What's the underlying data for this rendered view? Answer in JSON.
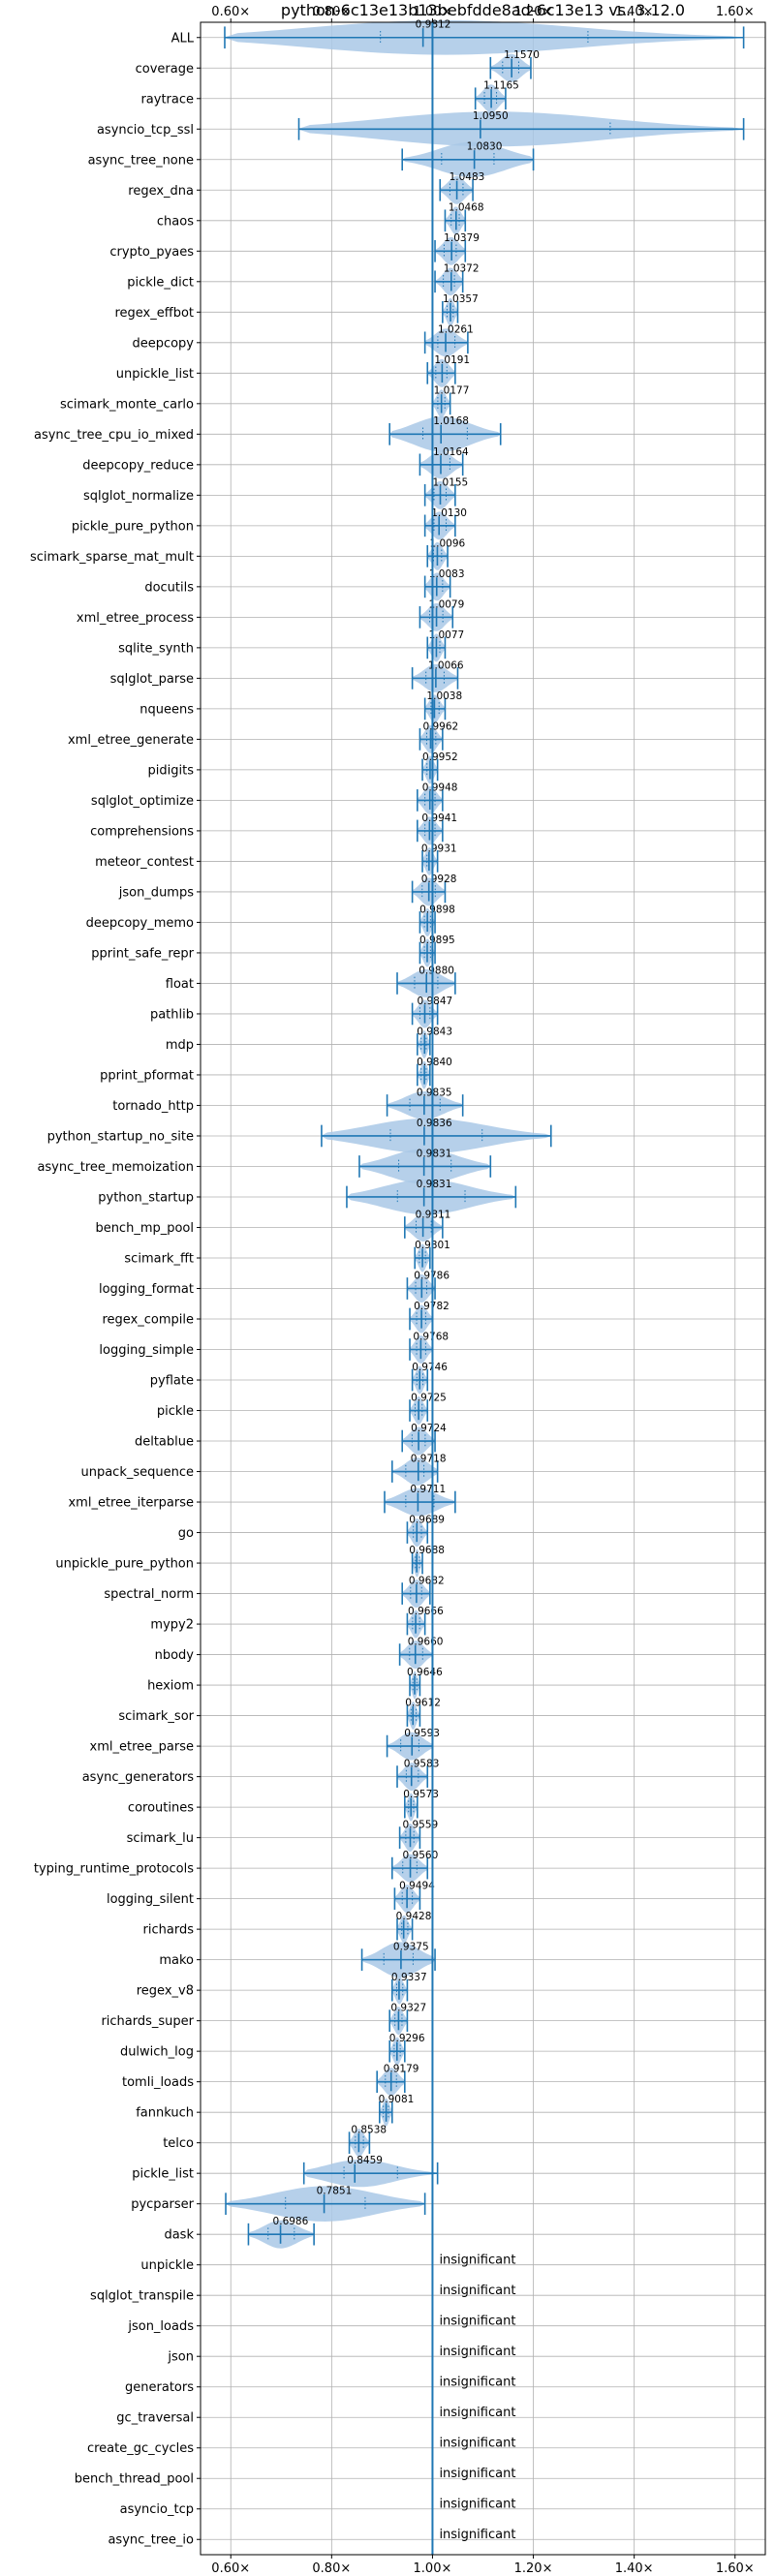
{
  "chart_data": {
    "type": "violin",
    "title": "python-6c13e13b13bebfdde8ad-6c13e13 vs. 3.12.0",
    "xlim": [
      0.54,
      1.66
    ],
    "xticks": [
      0.6,
      0.8,
      1.0,
      1.2,
      1.4,
      1.6
    ],
    "xtick_labels": [
      "0.60×",
      "0.80×",
      "1.00×",
      "1.20×",
      "1.40×",
      "1.60×"
    ],
    "reference_line": 1.0,
    "grid": true,
    "color": "#1f77b4",
    "fill_color": "#a9c8e6",
    "benchmarks": [
      {
        "name": "ALL",
        "label": "0.9812",
        "mean": 0.9812,
        "min": 0.588,
        "max": 1.617,
        "wide": true
      },
      {
        "name": "coverage",
        "label": "1.1570",
        "mean": 1.157,
        "min": 1.115,
        "max": 1.195
      },
      {
        "name": "raytrace",
        "label": "1.1165",
        "mean": 1.1165,
        "min": 1.085,
        "max": 1.145
      },
      {
        "name": "asyncio_tcp_ssl",
        "label": "1.0950",
        "mean": 1.095,
        "min": 0.735,
        "max": 1.617,
        "wide": true
      },
      {
        "name": "async_tree_none",
        "label": "1.0830",
        "mean": 1.083,
        "min": 0.94,
        "max": 1.2,
        "wide": true
      },
      {
        "name": "regex_dna",
        "label": "1.0483",
        "mean": 1.0483,
        "min": 1.015,
        "max": 1.08
      },
      {
        "name": "chaos",
        "label": "1.0468",
        "mean": 1.0468,
        "min": 1.025,
        "max": 1.065
      },
      {
        "name": "crypto_pyaes",
        "label": "1.0379",
        "mean": 1.0379,
        "min": 1.005,
        "max": 1.065
      },
      {
        "name": "pickle_dict",
        "label": "1.0372",
        "mean": 1.0372,
        "min": 1.005,
        "max": 1.06
      },
      {
        "name": "regex_effbot",
        "label": "1.0357",
        "mean": 1.0357,
        "min": 1.02,
        "max": 1.05
      },
      {
        "name": "deepcopy",
        "label": "1.0261",
        "mean": 1.0261,
        "min": 0.985,
        "max": 1.07
      },
      {
        "name": "unpickle_list",
        "label": "1.0191",
        "mean": 1.0191,
        "min": 0.99,
        "max": 1.045
      },
      {
        "name": "scimark_monte_carlo",
        "label": "1.0177",
        "mean": 1.0177,
        "min": 1.0,
        "max": 1.035
      },
      {
        "name": "async_tree_cpu_io_mixed",
        "label": "1.0168",
        "mean": 1.0168,
        "min": 0.915,
        "max": 1.135,
        "wide": true
      },
      {
        "name": "deepcopy_reduce",
        "label": "1.0164",
        "mean": 1.0164,
        "min": 0.975,
        "max": 1.06
      },
      {
        "name": "sqlglot_normalize",
        "label": "1.0155",
        "mean": 1.0155,
        "min": 0.985,
        "max": 1.045
      },
      {
        "name": "pickle_pure_python",
        "label": "1.0130",
        "mean": 1.013,
        "min": 0.985,
        "max": 1.045
      },
      {
        "name": "scimark_sparse_mat_mult",
        "label": "1.0096",
        "mean": 1.0096,
        "min": 0.99,
        "max": 1.03
      },
      {
        "name": "docutils",
        "label": "1.0083",
        "mean": 1.0083,
        "min": 0.985,
        "max": 1.035
      },
      {
        "name": "xml_etree_process",
        "label": "1.0079",
        "mean": 1.0079,
        "min": 0.975,
        "max": 1.04
      },
      {
        "name": "sqlite_synth",
        "label": "1.0077",
        "mean": 1.0077,
        "min": 0.99,
        "max": 1.025
      },
      {
        "name": "sqlglot_parse",
        "label": "1.0066",
        "mean": 1.0066,
        "min": 0.96,
        "max": 1.05
      },
      {
        "name": "nqueens",
        "label": "1.0038",
        "mean": 1.0038,
        "min": 0.985,
        "max": 1.025
      },
      {
        "name": "xml_etree_generate",
        "label": "0.9962",
        "mean": 0.9962,
        "min": 0.975,
        "max": 1.02
      },
      {
        "name": "pidigits",
        "label": "0.9952",
        "mean": 0.9952,
        "min": 0.98,
        "max": 1.01
      },
      {
        "name": "sqlglot_optimize",
        "label": "0.9948",
        "mean": 0.9948,
        "min": 0.97,
        "max": 1.02
      },
      {
        "name": "comprehensions",
        "label": "0.9941",
        "mean": 0.9941,
        "min": 0.97,
        "max": 1.02
      },
      {
        "name": "meteor_contest",
        "label": "0.9931",
        "mean": 0.9931,
        "min": 0.98,
        "max": 1.01
      },
      {
        "name": "json_dumps",
        "label": "0.9928",
        "mean": 0.9928,
        "min": 0.96,
        "max": 1.025
      },
      {
        "name": "deepcopy_memo",
        "label": "0.9898",
        "mean": 0.9898,
        "min": 0.975,
        "max": 1.005
      },
      {
        "name": "pprint_safe_repr",
        "label": "0.9895",
        "mean": 0.9895,
        "min": 0.975,
        "max": 1.005
      },
      {
        "name": "float",
        "label": "0.9880",
        "mean": 0.988,
        "min": 0.93,
        "max": 1.045
      },
      {
        "name": "pathlib",
        "label": "0.9847",
        "mean": 0.9847,
        "min": 0.96,
        "max": 1.01
      },
      {
        "name": "mdp",
        "label": "0.9843",
        "mean": 0.9843,
        "min": 0.97,
        "max": 0.995
      },
      {
        "name": "pprint_pformat",
        "label": "0.9840",
        "mean": 0.984,
        "min": 0.97,
        "max": 0.995
      },
      {
        "name": "tornado_http",
        "label": "0.9835",
        "mean": 0.9835,
        "min": 0.91,
        "max": 1.06
      },
      {
        "name": "python_startup_no_site",
        "label": "0.9836",
        "mean": 0.9836,
        "min": 0.78,
        "max": 1.235,
        "wide": true
      },
      {
        "name": "async_tree_memoization",
        "label": "0.9831",
        "mean": 0.9831,
        "min": 0.855,
        "max": 1.115,
        "wide": true
      },
      {
        "name": "python_startup",
        "label": "0.9831",
        "mean": 0.9831,
        "min": 0.83,
        "max": 1.165,
        "wide": true
      },
      {
        "name": "bench_mp_pool",
        "label": "0.9811",
        "mean": 0.9811,
        "min": 0.945,
        "max": 1.02
      },
      {
        "name": "scimark_fft",
        "label": "0.9801",
        "mean": 0.9801,
        "min": 0.965,
        "max": 0.995
      },
      {
        "name": "logging_format",
        "label": "0.9786",
        "mean": 0.9786,
        "min": 0.95,
        "max": 1.005
      },
      {
        "name": "regex_compile",
        "label": "0.9782",
        "mean": 0.9782,
        "min": 0.955,
        "max": 1.0
      },
      {
        "name": "logging_simple",
        "label": "0.9768",
        "mean": 0.9768,
        "min": 0.955,
        "max": 1.0
      },
      {
        "name": "pyflate",
        "label": "0.9746",
        "mean": 0.9746,
        "min": 0.96,
        "max": 0.99
      },
      {
        "name": "pickle",
        "label": "0.9725",
        "mean": 0.9725,
        "min": 0.955,
        "max": 0.99
      },
      {
        "name": "deltablue",
        "label": "0.9724",
        "mean": 0.9724,
        "min": 0.94,
        "max": 1.005
      },
      {
        "name": "unpack_sequence",
        "label": "0.9718",
        "mean": 0.9718,
        "min": 0.92,
        "max": 1.01
      },
      {
        "name": "xml_etree_iterparse",
        "label": "0.9711",
        "mean": 0.9711,
        "min": 0.905,
        "max": 1.045
      },
      {
        "name": "go",
        "label": "0.9689",
        "mean": 0.9689,
        "min": 0.95,
        "max": 0.99
      },
      {
        "name": "unpickle_pure_python",
        "label": "0.9688",
        "mean": 0.9688,
        "min": 0.96,
        "max": 0.98
      },
      {
        "name": "spectral_norm",
        "label": "0.9682",
        "mean": 0.9682,
        "min": 0.94,
        "max": 0.995
      },
      {
        "name": "mypy2",
        "label": "0.9666",
        "mean": 0.9666,
        "min": 0.95,
        "max": 0.985
      },
      {
        "name": "nbody",
        "label": "0.9660",
        "mean": 0.966,
        "min": 0.935,
        "max": 1.0
      },
      {
        "name": "hexiom",
        "label": "0.9646",
        "mean": 0.9646,
        "min": 0.955,
        "max": 0.975
      },
      {
        "name": "scimark_sor",
        "label": "0.9612",
        "mean": 0.9612,
        "min": 0.95,
        "max": 0.975
      },
      {
        "name": "xml_etree_parse",
        "label": "0.9593",
        "mean": 0.9593,
        "min": 0.91,
        "max": 1.0
      },
      {
        "name": "async_generators",
        "label": "0.9583",
        "mean": 0.9583,
        "min": 0.93,
        "max": 0.99
      },
      {
        "name": "coroutines",
        "label": "0.9573",
        "mean": 0.9573,
        "min": 0.945,
        "max": 0.97
      },
      {
        "name": "scimark_lu",
        "label": "0.9559",
        "mean": 0.9559,
        "min": 0.935,
        "max": 0.975
      },
      {
        "name": "typing_runtime_protocols",
        "label": "0.9560",
        "mean": 0.956,
        "min": 0.92,
        "max": 0.99
      },
      {
        "name": "logging_silent",
        "label": "0.9494",
        "mean": 0.9494,
        "min": 0.925,
        "max": 0.975
      },
      {
        "name": "richards",
        "label": "0.9428",
        "mean": 0.9428,
        "min": 0.93,
        "max": 0.96
      },
      {
        "name": "mako",
        "label": "0.9375",
        "mean": 0.9375,
        "min": 0.86,
        "max": 1.005,
        "wide": true
      },
      {
        "name": "regex_v8",
        "label": "0.9337",
        "mean": 0.9337,
        "min": 0.92,
        "max": 0.95
      },
      {
        "name": "richards_super",
        "label": "0.9327",
        "mean": 0.9327,
        "min": 0.915,
        "max": 0.95
      },
      {
        "name": "dulwich_log",
        "label": "0.9296",
        "mean": 0.9296,
        "min": 0.915,
        "max": 0.945
      },
      {
        "name": "tomli_loads",
        "label": "0.9179",
        "mean": 0.9179,
        "min": 0.89,
        "max": 0.945
      },
      {
        "name": "fannkuch",
        "label": "0.9081",
        "mean": 0.9081,
        "min": 0.895,
        "max": 0.92
      },
      {
        "name": "telco",
        "label": "0.8538",
        "mean": 0.8538,
        "min": 0.835,
        "max": 0.875
      },
      {
        "name": "pickle_list",
        "label": "0.8459",
        "mean": 0.8459,
        "min": 0.745,
        "max": 1.01
      },
      {
        "name": "pycparser",
        "label": "0.7851",
        "mean": 0.7851,
        "min": 0.59,
        "max": 0.985,
        "wide": true
      },
      {
        "name": "dask",
        "label": "0.6986",
        "mean": 0.6986,
        "min": 0.635,
        "max": 0.765
      }
    ],
    "insignificant_label": "insignificant",
    "insignificant": [
      "unpickle",
      "sqlglot_transpile",
      "json_loads",
      "json",
      "generators",
      "gc_traversal",
      "create_gc_cycles",
      "bench_thread_pool",
      "asyncio_tcp",
      "async_tree_io"
    ]
  }
}
